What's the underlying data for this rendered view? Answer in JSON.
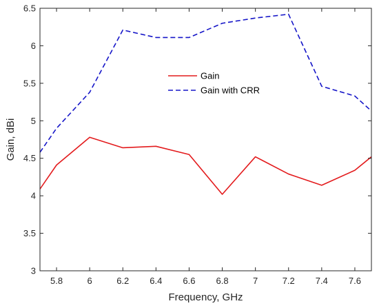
{
  "chart_data": {
    "type": "line",
    "title": "",
    "xlabel": "Frequency, GHz",
    "ylabel": "Gain, dBi",
    "xlim": [
      5.7,
      7.7
    ],
    "ylim": [
      3,
      6.5
    ],
    "xticks": [
      5.8,
      6,
      6.2,
      6.4,
      6.6,
      6.8,
      7,
      7.2,
      7.4,
      7.6
    ],
    "xtick_labels": [
      "5.8",
      "6",
      "6.2",
      "6.4",
      "6.6",
      "6.8",
      "7",
      "7.2",
      "7.4",
      "7.6"
    ],
    "yticks": [
      3,
      3.5,
      4,
      4.5,
      5,
      5.5,
      6,
      6.5
    ],
    "ytick_labels": [
      "3",
      "3.5",
      "4",
      "4.5",
      "5",
      "5.5",
      "6",
      "6.5"
    ],
    "grid": false,
    "legend_position": "center",
    "series": [
      {
        "name": "Gain",
        "color": "#e31a1c",
        "line_style": "solid",
        "x": [
          5.7,
          5.8,
          6.0,
          6.2,
          6.4,
          6.6,
          6.8,
          7.0,
          7.2,
          7.4,
          7.6,
          7.7
        ],
        "y": [
          4.09,
          4.41,
          4.78,
          4.64,
          4.66,
          4.55,
          4.02,
          4.52,
          4.29,
          4.14,
          4.34,
          4.52
        ]
      },
      {
        "name": "Gain with CRR",
        "color": "#1515c8",
        "line_style": "dashed",
        "x": [
          5.7,
          5.8,
          6.0,
          6.2,
          6.4,
          6.6,
          6.8,
          7.0,
          7.2,
          7.4,
          7.6,
          7.7
        ],
        "y": [
          4.58,
          4.9,
          5.38,
          6.21,
          6.11,
          6.11,
          6.3,
          6.37,
          6.42,
          5.46,
          5.33,
          5.13
        ]
      }
    ]
  }
}
